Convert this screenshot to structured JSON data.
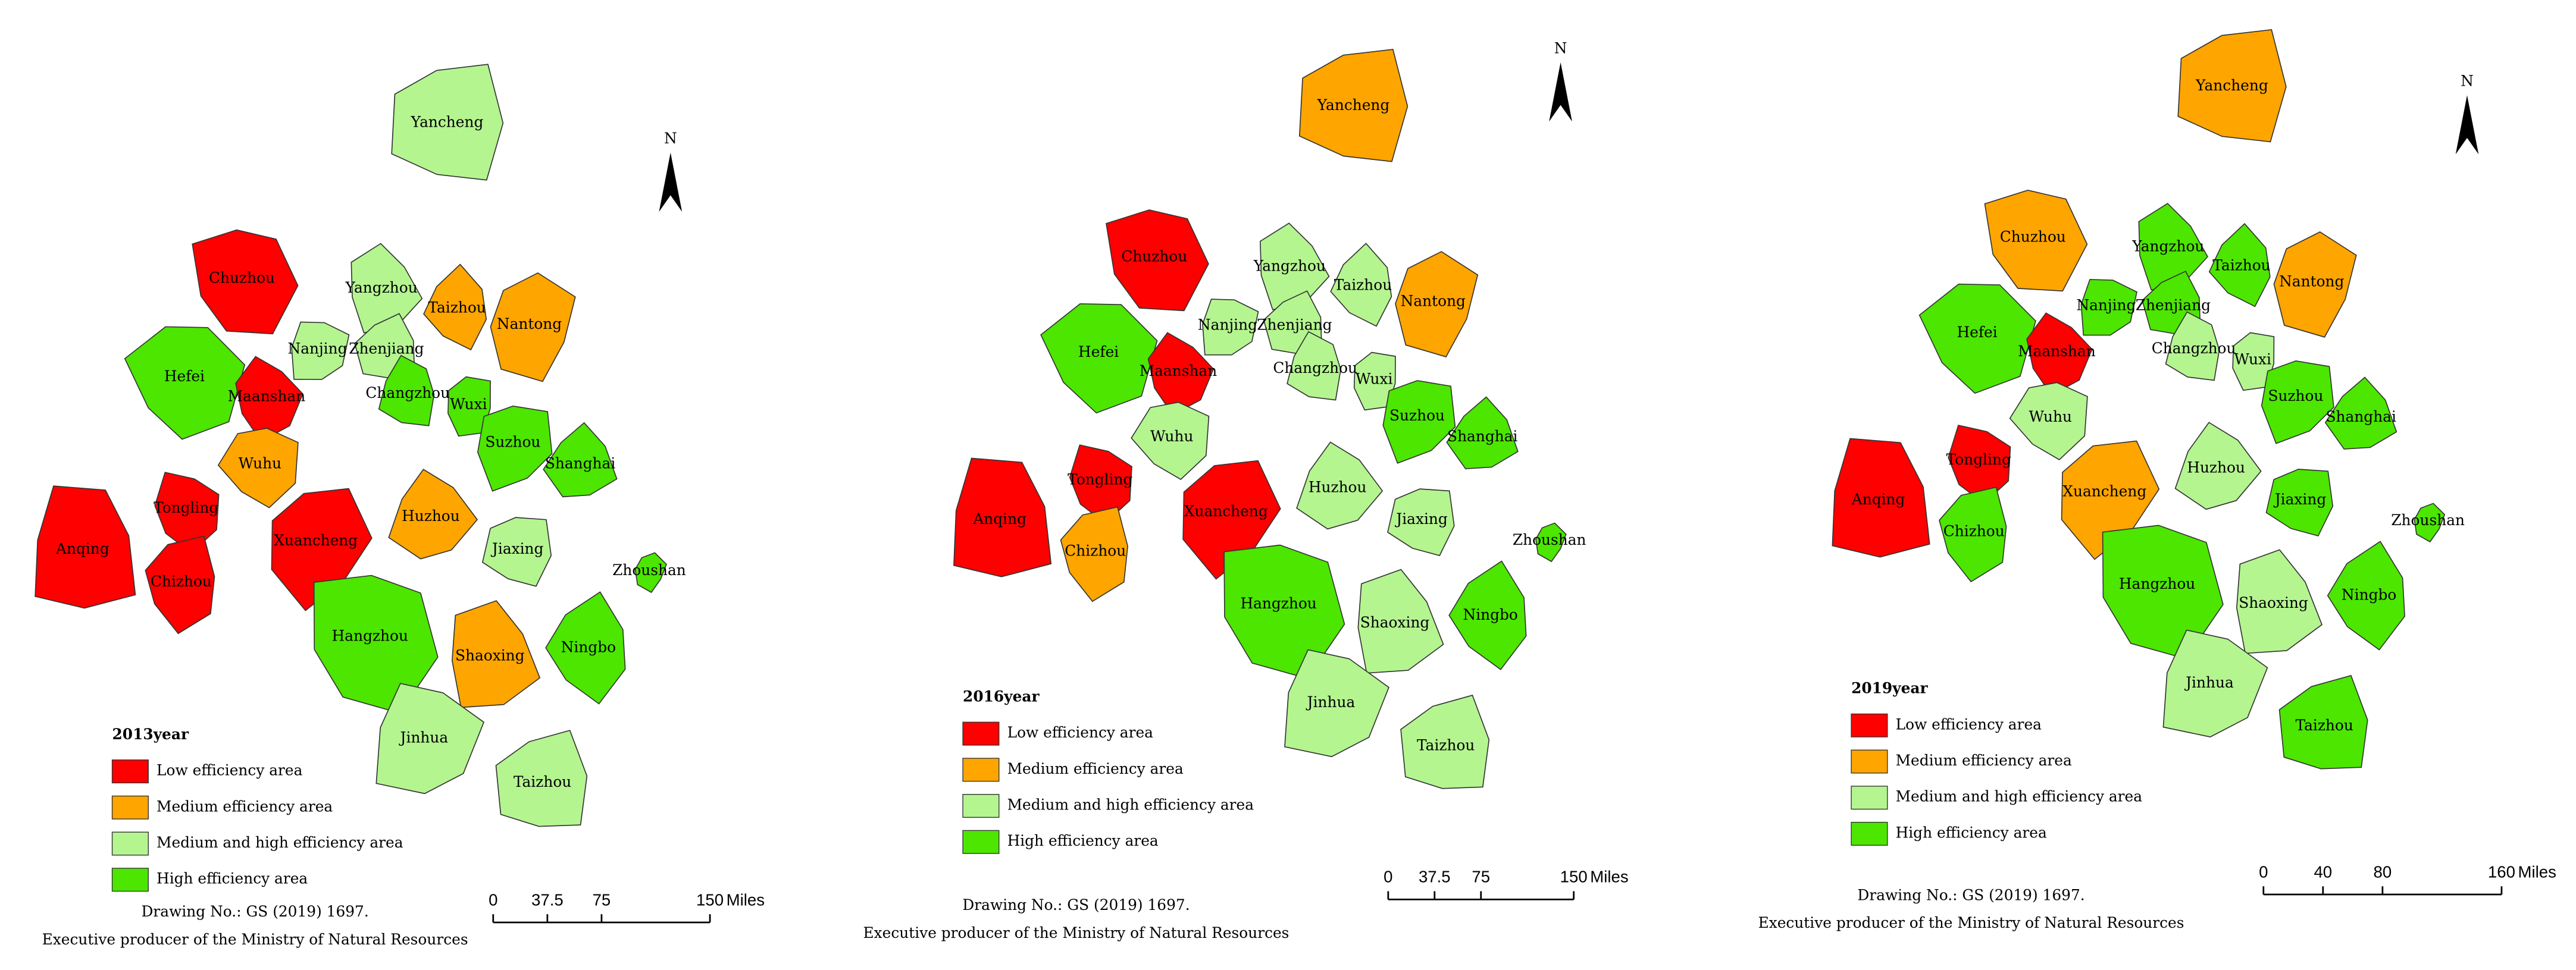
{
  "maps": [
    {
      "title": "2013year",
      "legend": [
        {
          "label": "Low efficiency area",
          "color": "#ff0000"
        },
        {
          "label": "Medium efficiency area",
          "color": "#ffa500"
        },
        {
          "label": "Medium and high efficiency area",
          "color": "#b4f590"
        },
        {
          "label": "High efficiency area",
          "color": "#4ce600"
        }
      ],
      "regions": [
        {
          "name": "Yancheng",
          "class": 2
        },
        {
          "name": "Chuzhou",
          "class": 0
        },
        {
          "name": "Yangzhou",
          "class": 2
        },
        {
          "name": "Taizhou",
          "class": 1
        },
        {
          "name": "Nantong",
          "class": 1
        },
        {
          "name": "Nanjing",
          "class": 2
        },
        {
          "name": "Zhenjiang",
          "class": 2
        },
        {
          "name": "Hefei",
          "class": 3
        },
        {
          "name": "Maanshan",
          "class": 0
        },
        {
          "name": "Changzhou",
          "class": 3
        },
        {
          "name": "Wuxi",
          "class": 3
        },
        {
          "name": "Suzhou",
          "class": 3
        },
        {
          "name": "Shanghai",
          "class": 3
        },
        {
          "name": "Wuhu",
          "class": 1
        },
        {
          "name": "Tongling",
          "class": 0
        },
        {
          "name": "Anqing",
          "class": 0
        },
        {
          "name": "Chizhou",
          "class": 0
        },
        {
          "name": "Xuancheng",
          "class": 0
        },
        {
          "name": "Huzhou",
          "class": 1
        },
        {
          "name": "Jiaxing",
          "class": 2
        },
        {
          "name": "Hangzhou",
          "class": 3
        },
        {
          "name": "Shaoxing",
          "class": 1
        },
        {
          "name": "Ningbo",
          "class": 3
        },
        {
          "name": "Zhoushan",
          "class": 3
        },
        {
          "name": "Jinhua",
          "class": 2
        },
        {
          "name": "Taizhou",
          "class": 2
        }
      ],
      "north": "N",
      "scale": {
        "ticks": [
          0,
          37.5,
          75,
          150
        ],
        "unit": "Miles"
      },
      "notes": [
        "Drawing No.: GS (2019) 1697.",
        "Executive producer of the Ministry of Natural Resources"
      ]
    },
    {
      "title": "2016year",
      "legend": [
        {
          "label": "Low efficiency area",
          "color": "#ff0000"
        },
        {
          "label": "Medium efficiency area",
          "color": "#ffa500"
        },
        {
          "label": "Medium and high efficiency area",
          "color": "#b4f590"
        },
        {
          "label": "High efficiency area",
          "color": "#4ce600"
        }
      ],
      "regions": [
        {
          "name": "Yancheng",
          "class": 1
        },
        {
          "name": "Chuzhou",
          "class": 0
        },
        {
          "name": "Yangzhou",
          "class": 2
        },
        {
          "name": "Taizhou",
          "class": 2
        },
        {
          "name": "Nantong",
          "class": 1
        },
        {
          "name": "Nanjing",
          "class": 2
        },
        {
          "name": "Zhenjiang",
          "class": 2
        },
        {
          "name": "Hefei",
          "class": 3
        },
        {
          "name": "Maanshan",
          "class": 0
        },
        {
          "name": "Changzhou",
          "class": 2
        },
        {
          "name": "Wuxi",
          "class": 2
        },
        {
          "name": "Suzhou",
          "class": 3
        },
        {
          "name": "Shanghai",
          "class": 3
        },
        {
          "name": "Wuhu",
          "class": 2
        },
        {
          "name": "Tongling",
          "class": 0
        },
        {
          "name": "Anqing",
          "class": 0
        },
        {
          "name": "Chizhou",
          "class": 1
        },
        {
          "name": "Xuancheng",
          "class": 0
        },
        {
          "name": "Huzhou",
          "class": 2
        },
        {
          "name": "Jiaxing",
          "class": 2
        },
        {
          "name": "Hangzhou",
          "class": 3
        },
        {
          "name": "Shaoxing",
          "class": 2
        },
        {
          "name": "Ningbo",
          "class": 3
        },
        {
          "name": "Zhoushan",
          "class": 3
        },
        {
          "name": "Jinhua",
          "class": 2
        },
        {
          "name": "Taizhou",
          "class": 2
        }
      ],
      "north": "N",
      "scale": {
        "ticks": [
          0,
          37.5,
          75,
          150
        ],
        "unit": "Miles"
      },
      "notes": [
        "Drawing No.: GS (2019) 1697.",
        "Executive producer of the Ministry of Natural Resources"
      ]
    },
    {
      "title": "2019year",
      "legend": [
        {
          "label": "Low efficiency area",
          "color": "#ff0000"
        },
        {
          "label": "Medium efficiency area",
          "color": "#ffa500"
        },
        {
          "label": "Medium and high efficiency area",
          "color": "#b4f590"
        },
        {
          "label": "High efficiency area",
          "color": "#4ce600"
        }
      ],
      "regions": [
        {
          "name": "Yancheng",
          "class": 1
        },
        {
          "name": "Chuzhou",
          "class": 1
        },
        {
          "name": "Yangzhou",
          "class": 3
        },
        {
          "name": "Taizhou",
          "class": 3
        },
        {
          "name": "Nantong",
          "class": 1
        },
        {
          "name": "Nanjing",
          "class": 3
        },
        {
          "name": "Zhenjiang",
          "class": 3
        },
        {
          "name": "Hefei",
          "class": 3
        },
        {
          "name": "Maanshan",
          "class": 0
        },
        {
          "name": "Changzhou",
          "class": 2
        },
        {
          "name": "Wuxi",
          "class": 2
        },
        {
          "name": "Suzhou",
          "class": 3
        },
        {
          "name": "Shanghai",
          "class": 3
        },
        {
          "name": "Wuhu",
          "class": 2
        },
        {
          "name": "Tongling",
          "class": 0
        },
        {
          "name": "Anqing",
          "class": 0
        },
        {
          "name": "Chizhou",
          "class": 3
        },
        {
          "name": "Xuancheng",
          "class": 1
        },
        {
          "name": "Huzhou",
          "class": 2
        },
        {
          "name": "Jiaxing",
          "class": 3
        },
        {
          "name": "Hangzhou",
          "class": 3
        },
        {
          "name": "Shaoxing",
          "class": 2
        },
        {
          "name": "Ningbo",
          "class": 3
        },
        {
          "name": "Zhoushan",
          "class": 3
        },
        {
          "name": "Jinhua",
          "class": 2
        },
        {
          "name": "Taizhou",
          "class": 3
        }
      ],
      "north": "N",
      "scale": {
        "ticks": [
          0,
          40,
          80,
          160
        ],
        "unit": "Miles"
      },
      "notes": [
        "Drawing No.: GS (2019) 1697.",
        "Executive producer of the Ministry of Natural Resources"
      ]
    }
  ]
}
